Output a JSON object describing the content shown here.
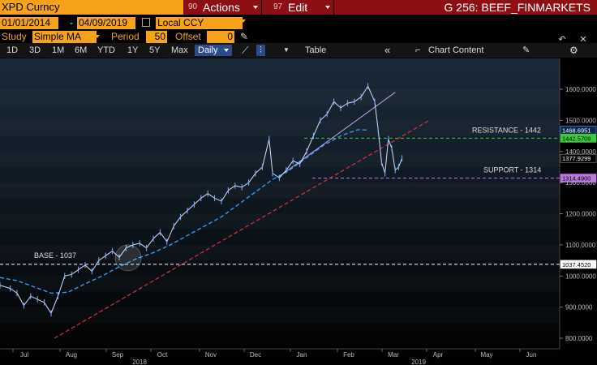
{
  "header": {
    "ticker": "XPD Curncy",
    "actions_num": "90",
    "actions_label": "Actions",
    "edit_num": "97",
    "edit_label": "Edit",
    "chart_id": "G 256: BEEF_FINMARKETS"
  },
  "range": {
    "start": "01/01/2014",
    "end": "04/09/2019",
    "currency": "Local CCY"
  },
  "study": {
    "label": "Study",
    "value": "Simple MA",
    "period_label": "Period",
    "period_value": "50",
    "offset_label": "Offset",
    "offset_value": "0"
  },
  "toolbar": {
    "periods": [
      "1D",
      "3D",
      "1M",
      "6M",
      "YTD",
      "1Y",
      "5Y",
      "Max"
    ],
    "frequency": "Daily",
    "table_label": "Table",
    "chart_content_label": "Chart Content"
  },
  "chart_data": {
    "type": "line",
    "y_ticks": [
      "1600.0000",
      "1500.0000",
      "1400.0000",
      "1300.0000",
      "1200.0000",
      "1100.0000",
      "1000.0000",
      "900.0000",
      "800.0000"
    ],
    "x_month_labels": [
      "Jul",
      "Aug",
      "Sep",
      "Oct",
      "Nov",
      "Dec",
      "Jan",
      "Feb",
      "Mar",
      "Apr",
      "May",
      "Jun"
    ],
    "x_year_labels": [
      "2018",
      "2019"
    ],
    "price_labels": {
      "ma": "1468.6951",
      "resistance_tag": "1442.5709",
      "last": "1377.9299",
      "support_tag": "1314.4900",
      "base_tag": "1037.4520"
    },
    "annotations": {
      "resistance": "RESISTANCE - 1442",
      "support": "SUPPORT - 1314",
      "base": "BASE - 1037"
    },
    "levels": {
      "resistance": 1442.57,
      "support": 1314.49,
      "base": 1037.45
    },
    "ylim": [
      770,
      1660
    ],
    "series": [
      {
        "name": "price",
        "values": [
          [
            0,
            970
          ],
          [
            3,
            960
          ],
          [
            5,
            945
          ],
          [
            7,
            905
          ],
          [
            9,
            935
          ],
          [
            11,
            925
          ],
          [
            13,
            915
          ],
          [
            15,
            880
          ],
          [
            17,
            935
          ],
          [
            19,
            1000
          ],
          [
            21,
            1005
          ],
          [
            23,
            1020
          ],
          [
            25,
            1035
          ],
          [
            27,
            1015
          ],
          [
            29,
            1050
          ],
          [
            31,
            1065
          ],
          [
            33,
            1080
          ],
          [
            35,
            1060
          ],
          [
            37,
            1090
          ],
          [
            39,
            1100
          ],
          [
            41,
            1105
          ],
          [
            43,
            1090
          ],
          [
            45,
            1120
          ],
          [
            47,
            1140
          ],
          [
            49,
            1110
          ],
          [
            51,
            1160
          ],
          [
            53,
            1190
          ],
          [
            55,
            1210
          ],
          [
            57,
            1230
          ],
          [
            59,
            1250
          ],
          [
            61,
            1265
          ],
          [
            63,
            1250
          ],
          [
            65,
            1240
          ],
          [
            67,
            1275
          ],
          [
            69,
            1290
          ],
          [
            71,
            1285
          ],
          [
            73,
            1300
          ],
          [
            75,
            1330
          ],
          [
            77,
            1350
          ],
          [
            79,
            1440
          ],
          [
            80,
            1330
          ],
          [
            82,
            1315
          ],
          [
            84,
            1340
          ],
          [
            86,
            1370
          ],
          [
            88,
            1360
          ],
          [
            90,
            1400
          ],
          [
            92,
            1450
          ],
          [
            94,
            1500
          ],
          [
            96,
            1520
          ],
          [
            98,
            1560
          ],
          [
            100,
            1540
          ],
          [
            102,
            1555
          ],
          [
            104,
            1560
          ],
          [
            106,
            1575
          ],
          [
            108,
            1610
          ],
          [
            110,
            1560
          ],
          [
            111,
            1470
          ],
          [
            112,
            1365
          ],
          [
            113,
            1330
          ],
          [
            114,
            1440
          ],
          [
            115,
            1410
          ],
          [
            116,
            1340
          ],
          [
            117,
            1350
          ],
          [
            118,
            1378
          ]
        ]
      },
      {
        "name": "ma",
        "values": [
          [
            0,
            995
          ],
          [
            5,
            985
          ],
          [
            10,
            965
          ],
          [
            15,
            945
          ],
          [
            20,
            948
          ],
          [
            25,
            975
          ],
          [
            30,
            1000
          ],
          [
            35,
            1030
          ],
          [
            40,
            1055
          ],
          [
            45,
            1075
          ],
          [
            50,
            1100
          ],
          [
            55,
            1130
          ],
          [
            60,
            1160
          ],
          [
            65,
            1190
          ],
          [
            70,
            1230
          ],
          [
            75,
            1270
          ],
          [
            80,
            1310
          ],
          [
            85,
            1340
          ],
          [
            90,
            1380
          ],
          [
            95,
            1420
          ],
          [
            100,
            1450
          ],
          [
            105,
            1470
          ],
          [
            108,
            1469
          ]
        ]
      }
    ],
    "trendlines": [
      {
        "from": [
          16,
          800
        ],
        "to": [
          126,
          1500
        ]
      },
      {
        "from": [
          82,
          1320
        ],
        "to": [
          116,
          1590
        ]
      }
    ]
  }
}
